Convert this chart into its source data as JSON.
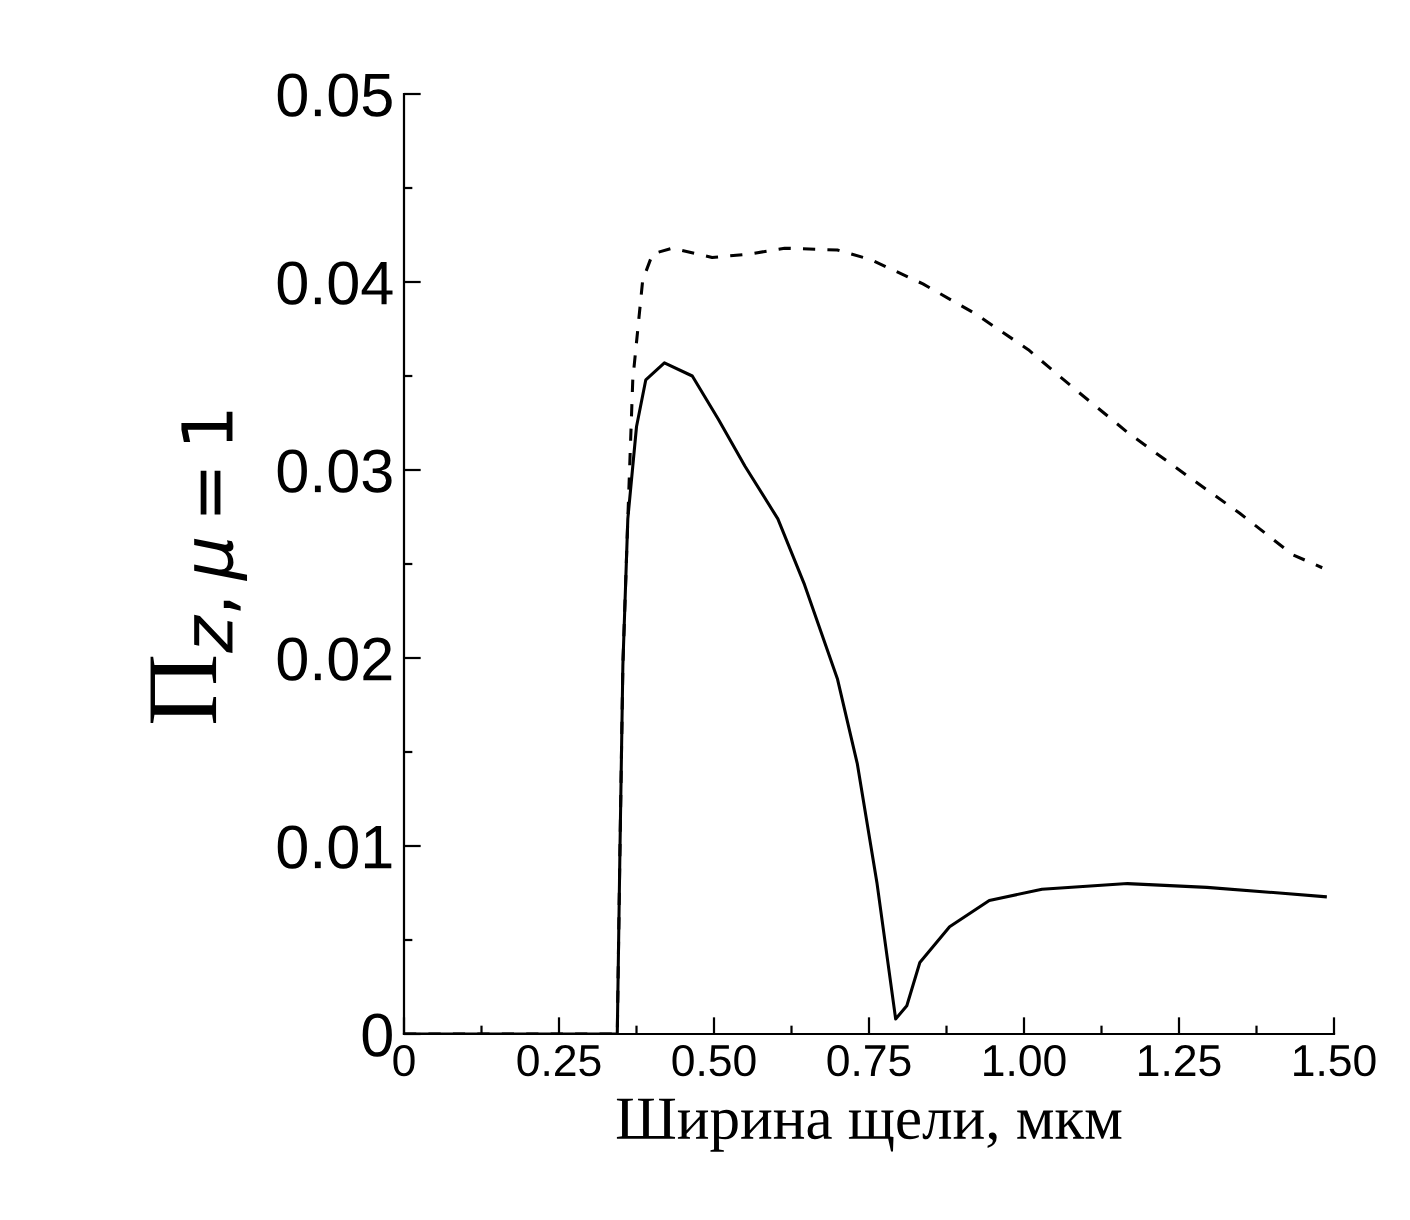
{
  "chart_data": {
    "type": "line",
    "xlabel": "Ширина щели, мкм",
    "ylabel": "Π$_{z,μ=1}$",
    "xlim": [
      0,
      1.5
    ],
    "ylim": [
      0,
      0.05
    ],
    "xticks": [
      0,
      {
        "value": 0.125,
        "label": null
      },
      0.25,
      {
        "value": 0.375,
        "label": null
      },
      {
        "value": 0.5,
        "label": "0.50"
      },
      {
        "value": 0.625,
        "label": null
      },
      0.75,
      {
        "value": 0.875,
        "label": null
      },
      {
        "value": 1.0,
        "label": "1.00"
      },
      {
        "value": 1.125,
        "label": null
      },
      1.25,
      {
        "value": 1.375,
        "label": null
      },
      {
        "value": 1.5,
        "label": "1.50"
      }
    ],
    "yticks": [
      0,
      {
        "value": 0.005,
        "label": null
      },
      0.01,
      {
        "value": 0.015,
        "label": null
      },
      0.02,
      {
        "value": 0.025,
        "label": null
      },
      0.03,
      {
        "value": 0.035,
        "label": null
      },
      0.04,
      {
        "value": 0.045,
        "label": null
      },
      0.05
    ],
    "grid": false,
    "series": [
      {
        "color": "#000000",
        "line_style": "solid",
        "x": [
          0,
          0.344,
          0.348,
          0.353,
          0.361,
          0.375,
          0.39,
          0.42,
          0.465,
          0.507,
          0.55,
          0.603,
          0.646,
          0.699,
          0.731,
          0.763,
          0.793,
          0.811,
          0.832,
          0.88,
          0.944,
          1.029,
          1.167,
          1.295,
          1.412,
          1.486
        ],
        "values": [
          0,
          0,
          0.0091,
          0.0196,
          0.0274,
          0.0323,
          0.0348,
          0.0357,
          0.035,
          0.0327,
          0.0302,
          0.0274,
          0.0239,
          0.0189,
          0.0144,
          0.008,
          0.0008,
          0.0015,
          0.0038,
          0.0057,
          0.0071,
          0.0077,
          0.008,
          0.0078,
          0.0075,
          0.0073
        ]
      },
      {
        "color": "#000000",
        "line_style": "dashed",
        "x": [
          0,
          0.344,
          0.348,
          0.353,
          0.361,
          0.369,
          0.385,
          0.401,
          0.433,
          0.497,
          0.56,
          0.614,
          0.699,
          0.752,
          0.837,
          0.922,
          1.007,
          1.082,
          1.167,
          1.263,
          1.348,
          1.433,
          1.481
        ],
        "values": [
          0,
          0,
          0.0091,
          0.0196,
          0.0274,
          0.0348,
          0.0401,
          0.0415,
          0.0418,
          0.0413,
          0.0415,
          0.0418,
          0.0417,
          0.0412,
          0.0399,
          0.0383,
          0.0364,
          0.0343,
          0.032,
          0.0297,
          0.0277,
          0.0255,
          0.0248
        ]
      }
    ]
  }
}
